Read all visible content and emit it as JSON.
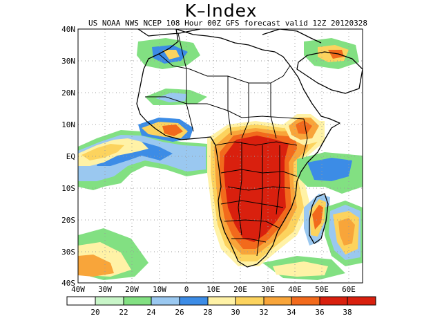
{
  "title": "K–Index",
  "subtitle": "US NOAA NWS NCEP 108 Hour 00Z GFS forecast valid 12Z 20120328",
  "map": {
    "lat_labels": [
      "40N",
      "30N",
      "20N",
      "10N",
      "EQ",
      "10S",
      "20S",
      "30S",
      "40S"
    ],
    "lon_labels": [
      "40W",
      "30W",
      "20W",
      "10W",
      "0",
      "10E",
      "20E",
      "30E",
      "40E",
      "50E",
      "60E"
    ],
    "lon_range": [
      -40,
      65
    ],
    "lat_range": [
      -40,
      40
    ],
    "gridlines": "dotted, every 10 degrees"
  },
  "colorbar": {
    "labels": [
      "20",
      "22",
      "24",
      "26",
      "28",
      "30",
      "32",
      "34",
      "36",
      "38"
    ],
    "colors": [
      "#ffffff",
      "#c8f5c8",
      "#82e082",
      "#9ac8f0",
      "#3c8ce6",
      "#fff2a6",
      "#fcd35e",
      "#f8a53a",
      "#f26a1c",
      "#d9200e"
    ]
  }
}
